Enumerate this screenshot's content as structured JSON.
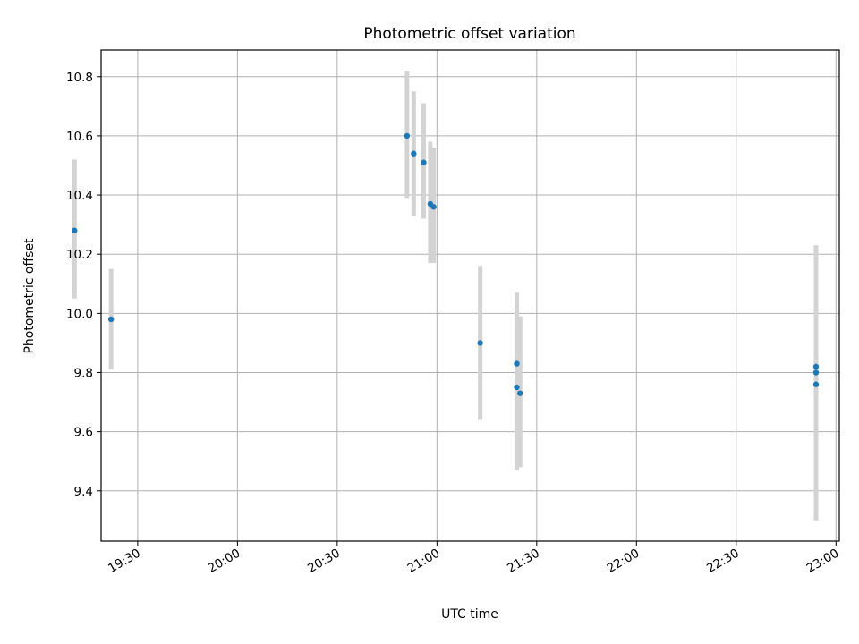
{
  "chart_data": {
    "type": "scatter",
    "title": "Photometric offset variation",
    "xlabel": "UTC time",
    "ylabel": "Photometric offset",
    "x_ticks": [
      "19:30",
      "20:00",
      "20:30",
      "21:00",
      "21:30",
      "22:00",
      "22:30",
      "23:00"
    ],
    "y_ticks": [
      "9.4",
      "9.6",
      "9.8",
      "10.0",
      "10.2",
      "10.4",
      "10.6",
      "10.8"
    ],
    "xlim": [
      "19:19",
      "23:01"
    ],
    "ylim": [
      9.23,
      10.89
    ],
    "grid": true,
    "colors": {
      "point": "#1f77b4",
      "errorbar": "#d3d3d3",
      "grid": "#b0b0b0"
    },
    "series": [
      {
        "points": [
          {
            "x": "19:11",
            "y": 10.28,
            "yerr_low": 10.05,
            "yerr_high": 10.52
          },
          {
            "x": "19:22",
            "y": 9.98,
            "yerr_low": 9.81,
            "yerr_high": 10.15
          },
          {
            "x": "20:51",
            "y": 10.6,
            "yerr_low": 10.39,
            "yerr_high": 10.82
          },
          {
            "x": "20:53",
            "y": 10.54,
            "yerr_low": 10.33,
            "yerr_high": 10.75
          },
          {
            "x": "20:56",
            "y": 10.51,
            "yerr_low": 10.32,
            "yerr_high": 10.71
          },
          {
            "x": "20:58",
            "y": 10.37,
            "yerr_low": 10.17,
            "yerr_high": 10.58
          },
          {
            "x": "20:59",
            "y": 10.36,
            "yerr_low": 10.17,
            "yerr_high": 10.56
          },
          {
            "x": "21:13",
            "y": 9.9,
            "yerr_low": 9.64,
            "yerr_high": 10.16
          },
          {
            "x": "21:24",
            "y": 9.83,
            "yerr_low": 9.59,
            "yerr_high": 10.07
          },
          {
            "x": "21:24",
            "y": 9.75,
            "yerr_low": 9.47,
            "yerr_high": 10.03
          },
          {
            "x": "21:25",
            "y": 9.73,
            "yerr_low": 9.48,
            "yerr_high": 9.99
          },
          {
            "x": "22:54",
            "y": 9.82,
            "yerr_low": 9.4,
            "yerr_high": 10.23
          },
          {
            "x": "22:54",
            "y": 9.8,
            "yerr_low": 9.38,
            "yerr_high": 10.22
          },
          {
            "x": "22:54",
            "y": 9.76,
            "yerr_low": 9.3,
            "yerr_high": 10.22
          }
        ]
      }
    ]
  }
}
